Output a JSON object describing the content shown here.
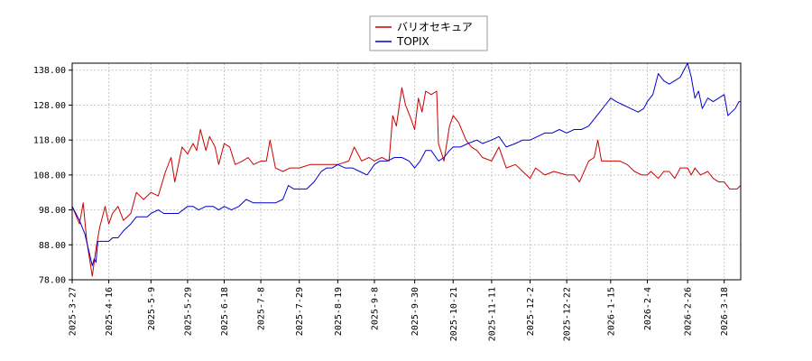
{
  "chart_data": {
    "type": "line",
    "title": "",
    "xlabel": "",
    "ylabel": "",
    "ylim": [
      78.0,
      140.0
    ],
    "yticks": [
      "78.00",
      "88.00",
      "98.00",
      "108.00",
      "118.00",
      "128.00",
      "138.00"
    ],
    "xticks": [
      "2025-3-27",
      "2025-4-16",
      "2025-5-9",
      "2025-5-29",
      "2025-6-18",
      "2025-7-8",
      "2025-7-29",
      "2025-8-19",
      "2025-9-8",
      "2025-9-30",
      "2025-10-21",
      "2025-11-11",
      "2025-12-2",
      "2025-12-22",
      "2026-1-15",
      "2026-2-4",
      "2026-2-26",
      "2026-3-18"
    ],
    "grid": true,
    "legend_position": "top-center",
    "series": [
      {
        "name": "バリオセキュア",
        "color": "#cc0000",
        "points": [
          [
            "2025-3-27",
            99
          ],
          [
            "2025-3-31",
            94
          ],
          [
            "2025-4-2",
            100
          ],
          [
            "2025-4-4",
            89
          ],
          [
            "2025-4-7",
            79
          ],
          [
            "2025-4-9",
            87
          ],
          [
            "2025-4-11",
            93
          ],
          [
            "2025-4-14",
            99
          ],
          [
            "2025-4-16",
            94
          ],
          [
            "2025-4-18",
            97
          ],
          [
            "2025-4-21",
            99
          ],
          [
            "2025-4-24",
            95
          ],
          [
            "2025-4-28",
            97
          ],
          [
            "2025-5-1",
            103
          ],
          [
            "2025-5-5",
            101
          ],
          [
            "2025-5-9",
            103
          ],
          [
            "2025-5-13",
            102
          ],
          [
            "2025-5-17",
            109
          ],
          [
            "2025-5-20",
            113
          ],
          [
            "2025-5-22",
            106
          ],
          [
            "2025-5-26",
            116
          ],
          [
            "2025-5-29",
            114
          ],
          [
            "2025-6-1",
            117
          ],
          [
            "2025-6-3",
            115
          ],
          [
            "2025-6-5",
            121
          ],
          [
            "2025-6-8",
            115
          ],
          [
            "2025-6-10",
            119
          ],
          [
            "2025-6-13",
            116
          ],
          [
            "2025-6-15",
            111
          ],
          [
            "2025-6-18",
            117
          ],
          [
            "2025-6-21",
            116
          ],
          [
            "2025-6-24",
            111
          ],
          [
            "2025-6-28",
            112
          ],
          [
            "2025-7-1",
            113
          ],
          [
            "2025-7-4",
            111
          ],
          [
            "2025-7-8",
            112
          ],
          [
            "2025-7-11",
            112
          ],
          [
            "2025-7-13",
            118
          ],
          [
            "2025-7-16",
            110
          ],
          [
            "2025-7-20",
            109
          ],
          [
            "2025-7-24",
            110
          ],
          [
            "2025-7-29",
            110
          ],
          [
            "2025-8-4",
            111
          ],
          [
            "2025-8-10",
            111
          ],
          [
            "2025-8-15",
            111
          ],
          [
            "2025-8-19",
            111
          ],
          [
            "2025-8-25",
            112
          ],
          [
            "2025-8-28",
            116
          ],
          [
            "2025-9-1",
            112
          ],
          [
            "2025-9-5",
            113
          ],
          [
            "2025-9-8",
            112
          ],
          [
            "2025-9-12",
            113
          ],
          [
            "2025-9-16",
            112
          ],
          [
            "2025-9-18",
            125
          ],
          [
            "2025-9-20",
            122
          ],
          [
            "2025-9-23",
            133
          ],
          [
            "2025-9-25",
            128
          ],
          [
            "2025-9-28",
            124
          ],
          [
            "2025-9-30",
            121
          ],
          [
            "2025-10-2",
            130
          ],
          [
            "2025-10-4",
            126
          ],
          [
            "2025-10-6",
            132
          ],
          [
            "2025-10-9",
            131
          ],
          [
            "2025-10-12",
            132
          ],
          [
            "2025-10-13",
            117
          ],
          [
            "2025-10-16",
            112
          ],
          [
            "2025-10-19",
            122
          ],
          [
            "2025-10-21",
            125
          ],
          [
            "2025-10-24",
            123
          ],
          [
            "2025-10-28",
            118
          ],
          [
            "2025-10-31",
            116
          ],
          [
            "2025-11-3",
            115
          ],
          [
            "2025-11-6",
            113
          ],
          [
            "2025-11-11",
            112
          ],
          [
            "2025-11-15",
            116
          ],
          [
            "2025-11-19",
            110
          ],
          [
            "2025-11-24",
            111
          ],
          [
            "2025-11-28",
            109
          ],
          [
            "2025-12-2",
            107
          ],
          [
            "2025-12-5",
            110
          ],
          [
            "2025-12-10",
            108
          ],
          [
            "2025-12-15",
            109
          ],
          [
            "2025-12-22",
            108
          ],
          [
            "2025-12-26",
            108
          ],
          [
            "2025-12-29",
            106
          ],
          [
            "2026-1-3",
            112
          ],
          [
            "2026-1-6",
            113
          ],
          [
            "2026-1-8",
            118
          ],
          [
            "2026-1-10",
            112
          ],
          [
            "2026-1-15",
            112
          ],
          [
            "2026-1-20",
            112
          ],
          [
            "2026-1-24",
            111
          ],
          [
            "2026-1-28",
            109
          ],
          [
            "2026-2-1",
            108
          ],
          [
            "2026-2-4",
            108
          ],
          [
            "2026-2-6",
            109
          ],
          [
            "2026-2-10",
            107
          ],
          [
            "2026-2-13",
            109
          ],
          [
            "2026-2-16",
            109
          ],
          [
            "2026-2-19",
            107
          ],
          [
            "2026-2-22",
            110
          ],
          [
            "2026-2-26",
            110
          ],
          [
            "2026-2-28",
            108
          ],
          [
            "2026-3-2",
            110
          ],
          [
            "2026-3-5",
            108
          ],
          [
            "2026-3-9",
            109
          ],
          [
            "2026-3-12",
            107
          ],
          [
            "2026-3-15",
            106
          ],
          [
            "2026-3-18",
            106
          ],
          [
            "2026-3-21",
            104
          ],
          [
            "2026-3-25",
            104
          ],
          [
            "2026-3-27",
            105
          ]
        ]
      },
      {
        "name": "TOPIX",
        "color": "#0000cc",
        "points": [
          [
            "2025-3-27",
            99
          ],
          [
            "2025-3-31",
            95
          ],
          [
            "2025-4-3",
            91
          ],
          [
            "2025-4-7",
            82
          ],
          [
            "2025-4-8",
            84
          ],
          [
            "2025-4-9",
            83
          ],
          [
            "2025-4-10",
            89
          ],
          [
            "2025-4-14",
            89
          ],
          [
            "2025-4-16",
            89
          ],
          [
            "2025-4-18",
            90
          ],
          [
            "2025-4-21",
            90
          ],
          [
            "2025-4-24",
            92
          ],
          [
            "2025-4-28",
            94
          ],
          [
            "2025-5-1",
            96
          ],
          [
            "2025-5-7",
            96
          ],
          [
            "2025-5-9",
            97
          ],
          [
            "2025-5-13",
            98
          ],
          [
            "2025-5-16",
            97
          ],
          [
            "2025-5-20",
            97
          ],
          [
            "2025-5-24",
            97
          ],
          [
            "2025-5-29",
            99
          ],
          [
            "2025-6-1",
            99
          ],
          [
            "2025-6-4",
            98
          ],
          [
            "2025-6-8",
            99
          ],
          [
            "2025-6-12",
            99
          ],
          [
            "2025-6-15",
            98
          ],
          [
            "2025-6-18",
            99
          ],
          [
            "2025-6-22",
            98
          ],
          [
            "2025-6-26",
            99
          ],
          [
            "2025-6-30",
            101
          ],
          [
            "2025-7-4",
            100
          ],
          [
            "2025-7-8",
            100
          ],
          [
            "2025-7-12",
            100
          ],
          [
            "2025-7-16",
            100
          ],
          [
            "2025-7-20",
            101
          ],
          [
            "2025-7-23",
            105
          ],
          [
            "2025-7-26",
            104
          ],
          [
            "2025-7-29",
            104
          ],
          [
            "2025-8-2",
            104
          ],
          [
            "2025-8-6",
            106
          ],
          [
            "2025-8-10",
            109
          ],
          [
            "2025-8-13",
            110
          ],
          [
            "2025-8-16",
            110
          ],
          [
            "2025-8-19",
            111
          ],
          [
            "2025-8-23",
            110
          ],
          [
            "2025-8-27",
            110
          ],
          [
            "2025-8-31",
            109
          ],
          [
            "2025-9-4",
            108
          ],
          [
            "2025-9-8",
            111
          ],
          [
            "2025-9-11",
            112
          ],
          [
            "2025-9-15",
            112
          ],
          [
            "2025-9-19",
            113
          ],
          [
            "2025-9-23",
            113
          ],
          [
            "2025-9-27",
            112
          ],
          [
            "2025-9-30",
            110
          ],
          [
            "2025-10-3",
            112
          ],
          [
            "2025-10-6",
            115
          ],
          [
            "2025-10-9",
            115
          ],
          [
            "2025-10-13",
            112
          ],
          [
            "2025-10-16",
            113
          ],
          [
            "2025-10-19",
            115
          ],
          [
            "2025-10-21",
            116
          ],
          [
            "2025-10-25",
            116
          ],
          [
            "2025-10-29",
            117
          ],
          [
            "2025-11-3",
            118
          ],
          [
            "2025-11-6",
            117
          ],
          [
            "2025-11-11",
            118
          ],
          [
            "2025-11-15",
            119
          ],
          [
            "2025-11-19",
            116
          ],
          [
            "2025-11-24",
            117
          ],
          [
            "2025-11-28",
            118
          ],
          [
            "2025-12-2",
            118
          ],
          [
            "2025-12-6",
            119
          ],
          [
            "2025-12-10",
            120
          ],
          [
            "2025-12-14",
            120
          ],
          [
            "2025-12-18",
            121
          ],
          [
            "2025-12-22",
            120
          ],
          [
            "2025-12-26",
            121
          ],
          [
            "2025-12-30",
            121
          ],
          [
            "2026-1-3",
            122
          ],
          [
            "2026-1-6",
            124
          ],
          [
            "2026-1-9",
            126
          ],
          [
            "2026-1-12",
            128
          ],
          [
            "2026-1-15",
            130
          ],
          [
            "2026-1-18",
            129
          ],
          [
            "2026-1-22",
            128
          ],
          [
            "2026-1-26",
            127
          ],
          [
            "2026-1-30",
            126
          ],
          [
            "2026-2-2",
            127
          ],
          [
            "2026-2-4",
            129
          ],
          [
            "2026-2-7",
            131
          ],
          [
            "2026-2-10",
            137
          ],
          [
            "2026-2-13",
            135
          ],
          [
            "2026-2-16",
            134
          ],
          [
            "2026-2-19",
            135
          ],
          [
            "2026-2-22",
            136
          ],
          [
            "2026-2-26",
            140
          ],
          [
            "2026-2-28",
            136
          ],
          [
            "2026-3-2",
            130
          ],
          [
            "2026-3-4",
            132
          ],
          [
            "2026-3-6",
            127
          ],
          [
            "2026-3-9",
            130
          ],
          [
            "2026-3-12",
            129
          ],
          [
            "2026-3-15",
            130
          ],
          [
            "2026-3-18",
            131
          ],
          [
            "2026-3-20",
            125
          ],
          [
            "2026-3-22",
            126
          ],
          [
            "2026-3-24",
            127
          ],
          [
            "2026-3-26",
            129
          ],
          [
            "2026-3-27",
            129
          ]
        ]
      }
    ]
  }
}
